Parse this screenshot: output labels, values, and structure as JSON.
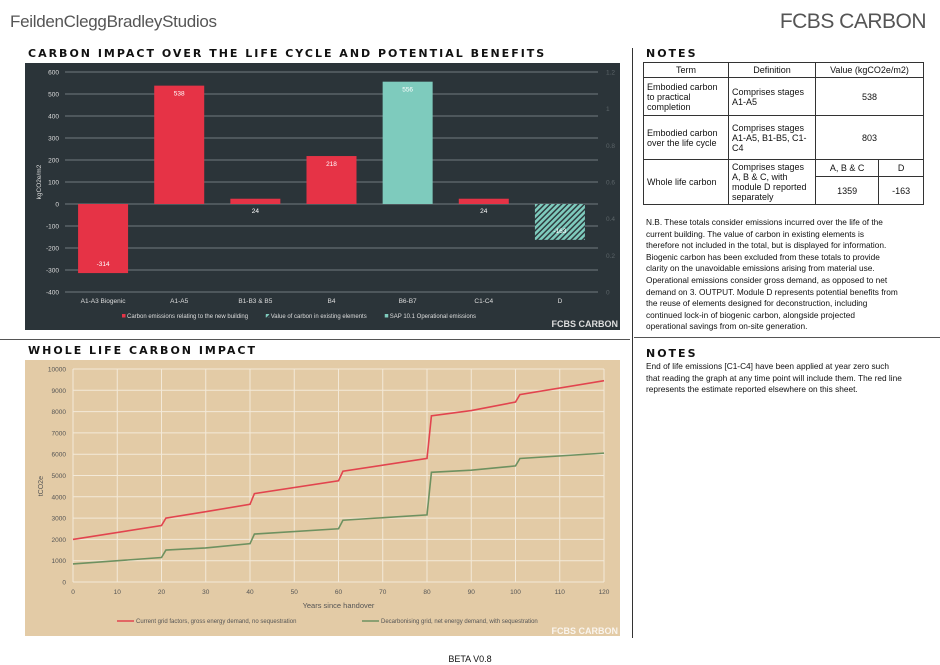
{
  "header": {
    "logo_left": "FeildenCleggBradleyStudios",
    "logo_right": "FCBS CARBON"
  },
  "section1": {
    "title": "CARBON IMPACT OVER THE LIFE CYCLE AND POTENTIAL BENEFITS"
  },
  "section2": {
    "title": "WHOLE LIFE CARBON IMPACT"
  },
  "notes1": {
    "title": "NOTES",
    "table": {
      "headers": [
        "Term",
        "Definition",
        "Value (kgCO2e/m2)"
      ],
      "rows": [
        {
          "term": "Embodied carbon to practical completion",
          "definition": "Comprises stages A1-A5",
          "value": "538"
        },
        {
          "term": "Embodied carbon over the life cycle",
          "definition": "Comprises stages A1-A5, B1-B5, C1-C4",
          "value": "803"
        },
        {
          "term": "Whole life carbon",
          "definition": "Comprises stages A, B & C, with module D reported separately",
          "sub_headers": [
            "A, B & C",
            "D"
          ],
          "values": [
            "1359",
            "-163"
          ]
        }
      ]
    },
    "text": "N.B. These totals consider emissions incurred over the life of the current building. The value of carbon in existing elements is therefore not included in the total, but is displayed for information. Biogenic carbon has been excluded from these totals to provide clarity on the unavoidable emissions arising from material use. Operational emissions consider gross demand, as opposed to net demand on 3. OUTPUT. Module D represents potential benefits from the reuse of elements designed for deconstruction, including continued lock-in of biogenic carbon, alongside projected operational savings from on-site generation."
  },
  "notes2": {
    "title": "NOTES",
    "text": "End of life emissions [C1-C4] have been applied at year zero such that reading the graph at any time point will include them. The red line represents the estimate reported elsewhere on this sheet."
  },
  "footer": {
    "version": "BETA V0.8"
  },
  "chart_data": [
    {
      "type": "bar",
      "ylabel": "kgCO2e/m2",
      "ylim": [
        -400,
        600
      ],
      "yticks": [
        600,
        500,
        400,
        300,
        200,
        100,
        0,
        -100,
        -200,
        -300,
        -400
      ],
      "y2lim": [
        0,
        1.2
      ],
      "y2ticks": [
        "1.2",
        "1",
        "0.8",
        "0.6",
        "0.4",
        "0.2",
        "0"
      ],
      "grid": true,
      "legend": "bottom",
      "background": "#2b3439",
      "categories": [
        "A1-A3 Biogenic",
        "A1-A5",
        "B1-B3 & B5",
        "B4",
        "B6-B7",
        "C1-C4",
        "D"
      ],
      "values": [
        -314,
        538,
        24,
        218,
        556,
        24,
        -163
      ],
      "bar_series": [
        "new",
        "new",
        "new",
        "new",
        "operational",
        "new",
        "existing"
      ],
      "series": [
        {
          "key": "new",
          "name": "Carbon emissions relating to the new building",
          "color": "#e63346"
        },
        {
          "key": "existing",
          "name": "Value of carbon in existing elements",
          "color": "#7ecbbd",
          "pattern": "hatched"
        },
        {
          "key": "operational",
          "name": "SAP 10.1 Operational emissions",
          "color": "#7ecbbd"
        }
      ],
      "watermark": "FCBS CARBON"
    },
    {
      "type": "line",
      "xlabel": "Years since handover",
      "ylabel": "tCO2e",
      "xlim": [
        0,
        120
      ],
      "ylim": [
        0,
        10000
      ],
      "xticks": [
        0,
        10,
        20,
        30,
        40,
        50,
        60,
        70,
        80,
        90,
        100,
        110,
        120
      ],
      "yticks": [
        0,
        1000,
        2000,
        3000,
        4000,
        5000,
        6000,
        7000,
        8000,
        9000,
        10000
      ],
      "grid": true,
      "legend": "bottom",
      "background": "#e3cba6",
      "watermark": "FCBS CARBON",
      "series": [
        {
          "name": "Current grid factors, gross energy demand, no sequestration",
          "color": "#e2444e",
          "x": [
            0,
            20,
            21,
            30,
            40,
            41,
            60,
            61,
            80,
            81,
            90,
            100,
            101,
            120
          ],
          "y": [
            2000,
            2650,
            3000,
            3300,
            3650,
            4150,
            4750,
            5200,
            5800,
            7800,
            8050,
            8450,
            8800,
            9450
          ]
        },
        {
          "name": "Decarbonising grid, net energy demand, with sequestration",
          "color": "#6e9160",
          "x": [
            0,
            20,
            21,
            30,
            40,
            41,
            60,
            61,
            80,
            81,
            90,
            100,
            101,
            120
          ],
          "y": [
            850,
            1150,
            1500,
            1600,
            1800,
            2250,
            2500,
            2900,
            3150,
            5150,
            5250,
            5450,
            5800,
            6050
          ]
        }
      ]
    }
  ]
}
